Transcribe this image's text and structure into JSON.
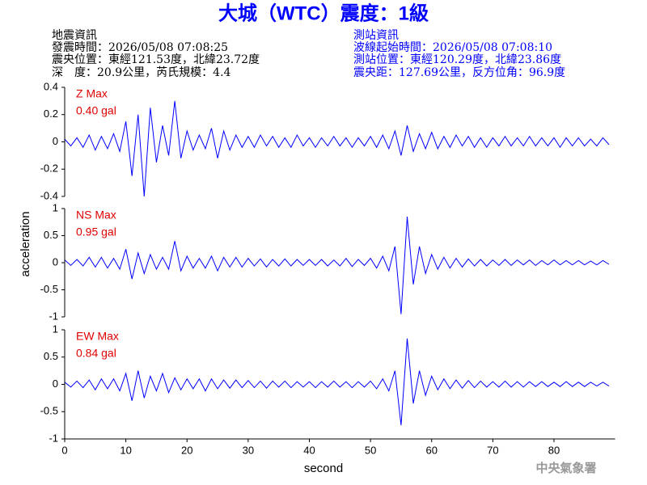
{
  "header": {
    "title": "大城（WTC）震度：1級",
    "left": [
      "地震資訊",
      "發震時間：2026/05/08 07:08:25",
      "震央位置：東經121.53度，北緯23.72度",
      "深　度：20.9公里，芮氏規模：4.4"
    ],
    "right": [
      "測站資訊",
      "波線起始時間：2026/05/08 07:08:10",
      "測站位置：東經120.29度，北緯23.86度",
      "震央距：127.69公里，反方位角：96.9度"
    ]
  },
  "figure": {
    "ylabel": "acceleration",
    "xlabel": "second",
    "footer": "中央氣象署"
  },
  "chart_data": [
    {
      "type": "line",
      "title": "Z Max",
      "subtitle": "0.40 gal",
      "color": "#0000ff",
      "xlim": [
        0,
        90
      ],
      "ylim": [
        -0.4,
        0.4
      ],
      "yticks": [
        -0.4,
        -0.2,
        0,
        0.2,
        0.4
      ],
      "x": [
        0,
        1,
        2,
        3,
        4,
        5,
        6,
        7,
        8,
        9,
        10,
        11,
        12,
        13,
        14,
        15,
        16,
        17,
        18,
        19,
        20,
        21,
        22,
        23,
        24,
        25,
        26,
        27,
        28,
        29,
        30,
        31,
        32,
        33,
        34,
        35,
        36,
        37,
        38,
        39,
        40,
        41,
        42,
        43,
        44,
        45,
        46,
        47,
        48,
        49,
        50,
        51,
        52,
        53,
        54,
        55,
        56,
        57,
        58,
        59,
        60,
        61,
        62,
        63,
        64,
        65,
        66,
        67,
        68,
        69,
        70,
        71,
        72,
        73,
        74,
        75,
        76,
        77,
        78,
        79,
        80,
        81,
        82,
        83,
        84,
        85,
        86,
        87,
        88,
        89
      ],
      "values": [
        0.02,
        -0.03,
        0.03,
        -0.04,
        0.05,
        -0.06,
        0.04,
        -0.05,
        0.06,
        -0.07,
        0.15,
        -0.25,
        0.2,
        -0.4,
        0.25,
        -0.15,
        0.12,
        -0.1,
        0.3,
        -0.12,
        0.08,
        -0.06,
        0.05,
        -0.05,
        0.1,
        -0.12,
        0.08,
        -0.06,
        0.05,
        -0.04,
        0.04,
        -0.04,
        0.05,
        -0.03,
        0.04,
        -0.04,
        0.03,
        -0.04,
        0.05,
        -0.03,
        0.03,
        -0.04,
        0.03,
        -0.03,
        0.04,
        -0.03,
        0.03,
        -0.04,
        0.03,
        -0.03,
        0.04,
        -0.04,
        0.05,
        -0.05,
        0.08,
        -0.1,
        0.12,
        -0.07,
        0.06,
        -0.05,
        0.07,
        -0.05,
        0.04,
        -0.04,
        0.05,
        -0.03,
        0.04,
        -0.04,
        0.03,
        -0.04,
        0.03,
        -0.03,
        0.04,
        -0.03,
        0.03,
        -0.03,
        0.04,
        -0.03,
        0.03,
        -0.03,
        0.03,
        -0.04,
        0.03,
        -0.03,
        0.03,
        -0.03,
        0.02,
        -0.03,
        0.03,
        -0.02
      ]
    },
    {
      "type": "line",
      "title": "NS Max",
      "subtitle": "0.95 gal",
      "color": "#0000ff",
      "xlim": [
        0,
        90
      ],
      "ylim": [
        -1,
        1
      ],
      "yticks": [
        -1,
        -0.5,
        0,
        0.5,
        1
      ],
      "x": [
        0,
        1,
        2,
        3,
        4,
        5,
        6,
        7,
        8,
        9,
        10,
        11,
        12,
        13,
        14,
        15,
        16,
        17,
        18,
        19,
        20,
        21,
        22,
        23,
        24,
        25,
        26,
        27,
        28,
        29,
        30,
        31,
        32,
        33,
        34,
        35,
        36,
        37,
        38,
        39,
        40,
        41,
        42,
        43,
        44,
        45,
        46,
        47,
        48,
        49,
        50,
        51,
        52,
        53,
        54,
        55,
        56,
        57,
        58,
        59,
        60,
        61,
        62,
        63,
        64,
        65,
        66,
        67,
        68,
        69,
        70,
        71,
        72,
        73,
        74,
        75,
        76,
        77,
        78,
        79,
        80,
        81,
        82,
        83,
        84,
        85,
        86,
        87,
        88,
        89
      ],
      "values": [
        0.05,
        -0.05,
        0.06,
        -0.06,
        0.1,
        -0.08,
        0.1,
        -0.1,
        0.08,
        -0.12,
        0.25,
        -0.3,
        0.18,
        -0.2,
        0.15,
        -0.12,
        0.1,
        -0.12,
        0.4,
        -0.15,
        0.12,
        -0.1,
        0.08,
        -0.1,
        0.12,
        -0.15,
        0.1,
        -0.08,
        0.1,
        -0.08,
        0.08,
        -0.06,
        0.07,
        -0.08,
        0.06,
        -0.06,
        0.07,
        -0.06,
        0.06,
        -0.05,
        0.06,
        -0.05,
        0.06,
        -0.06,
        0.05,
        -0.06,
        0.08,
        -0.07,
        0.06,
        -0.05,
        0.08,
        -0.1,
        0.12,
        -0.15,
        0.3,
        -0.95,
        0.85,
        -0.4,
        0.3,
        -0.2,
        0.15,
        -0.12,
        0.1,
        -0.1,
        0.08,
        -0.08,
        0.07,
        -0.06,
        0.06,
        -0.06,
        0.05,
        -0.05,
        0.06,
        -0.05,
        0.05,
        -0.04,
        0.05,
        -0.05,
        0.04,
        -0.04,
        0.05,
        -0.04,
        0.04,
        -0.04,
        0.04,
        -0.04,
        0.03,
        -0.04,
        0.04,
        -0.03
      ]
    },
    {
      "type": "line",
      "title": "EW Max",
      "subtitle": "0.84 gal",
      "color": "#0000ff",
      "xlim": [
        0,
        90
      ],
      "ylim": [
        -1,
        1
      ],
      "yticks": [
        -1,
        -0.5,
        0,
        0.5,
        1
      ],
      "xticks": [
        0,
        10,
        20,
        30,
        40,
        50,
        60,
        70,
        80
      ],
      "x": [
        0,
        1,
        2,
        3,
        4,
        5,
        6,
        7,
        8,
        9,
        10,
        11,
        12,
        13,
        14,
        15,
        16,
        17,
        18,
        19,
        20,
        21,
        22,
        23,
        24,
        25,
        26,
        27,
        28,
        29,
        30,
        31,
        32,
        33,
        34,
        35,
        36,
        37,
        38,
        39,
        40,
        41,
        42,
        43,
        44,
        45,
        46,
        47,
        48,
        49,
        50,
        51,
        52,
        53,
        54,
        55,
        56,
        57,
        58,
        59,
        60,
        61,
        62,
        63,
        64,
        65,
        66,
        67,
        68,
        69,
        70,
        71,
        72,
        73,
        74,
        75,
        76,
        77,
        78,
        79,
        80,
        81,
        82,
        83,
        84,
        85,
        86,
        87,
        88,
        89
      ],
      "values": [
        0.04,
        -0.05,
        0.06,
        -0.06,
        0.08,
        -0.1,
        0.1,
        -0.08,
        0.1,
        -0.12,
        0.2,
        -0.3,
        0.25,
        -0.25,
        0.15,
        -0.12,
        0.2,
        -0.15,
        0.12,
        -0.1,
        0.1,
        -0.08,
        0.1,
        -0.12,
        0.1,
        -0.08,
        0.08,
        -0.07,
        0.08,
        -0.06,
        0.07,
        -0.06,
        0.06,
        -0.07,
        0.06,
        -0.05,
        0.06,
        -0.06,
        0.05,
        -0.05,
        0.05,
        -0.06,
        0.05,
        -0.05,
        0.06,
        -0.05,
        0.05,
        -0.06,
        0.05,
        -0.05,
        0.06,
        -0.08,
        0.1,
        -0.12,
        0.25,
        -0.75,
        0.84,
        -0.35,
        0.25,
        -0.2,
        0.15,
        -0.1,
        0.1,
        -0.08,
        0.08,
        -0.07,
        0.07,
        -0.06,
        0.06,
        -0.05,
        0.05,
        -0.05,
        0.06,
        -0.05,
        0.05,
        -0.05,
        0.05,
        -0.04,
        0.05,
        -0.04,
        0.04,
        -0.04,
        0.05,
        -0.04,
        0.04,
        -0.04,
        0.04,
        -0.03,
        0.04,
        -0.03
      ]
    }
  ]
}
